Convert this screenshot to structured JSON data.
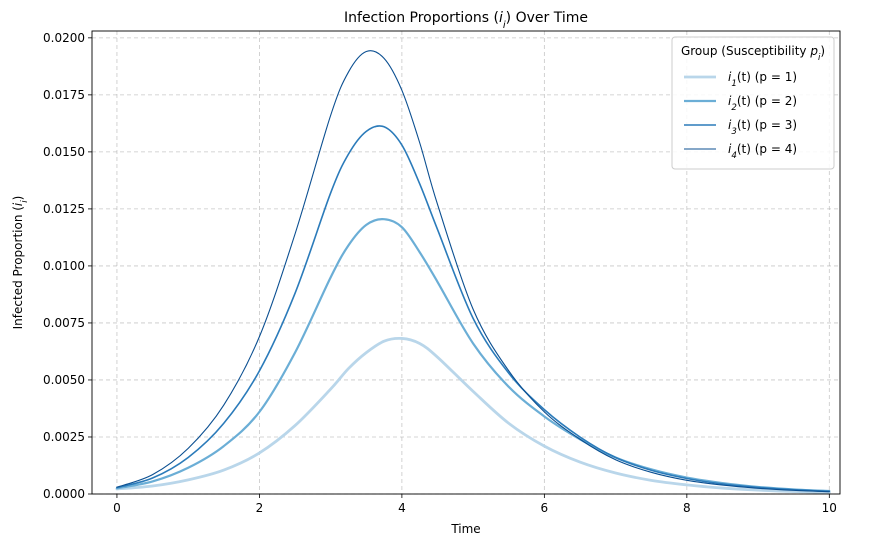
{
  "chart_data": {
    "type": "line",
    "title": "Infection Proportions (i_i) Over Time",
    "xlabel": "Time",
    "ylabel": "Infected Proportion (i_i)",
    "xlim": [
      -0.35,
      10.15
    ],
    "ylim": [
      0,
      0.0203
    ],
    "xticks": [
      0,
      2,
      4,
      6,
      8,
      10
    ],
    "xtick_labels": [
      "0",
      "2",
      "4",
      "6",
      "8",
      "10"
    ],
    "yticks": [
      0,
      0.0025,
      0.005,
      0.0075,
      0.01,
      0.0125,
      0.015,
      0.0175,
      0.02
    ],
    "ytick_labels": [
      "0.0000",
      "0.0025",
      "0.0050",
      "0.0075",
      "0.0100",
      "0.0125",
      "0.0150",
      "0.0175",
      "0.0200"
    ],
    "grid": true,
    "legend": {
      "title": "Group (Susceptibility p_i)",
      "placement": "top-right"
    },
    "x": [
      0,
      0.5,
      1,
      1.5,
      2,
      2.5,
      3,
      3.25,
      3.5,
      3.75,
      4,
      4.25,
      4.5,
      5,
      5.5,
      6,
      6.5,
      7,
      7.5,
      8,
      8.5,
      9,
      9.5,
      10
    ],
    "series": [
      {
        "name": "i_1(t) (p = 1)",
        "color": "#b9d6ea",
        "width": 2.8,
        "values": [
          0.00022,
          0.00035,
          0.00062,
          0.00105,
          0.0018,
          0.003,
          0.0046,
          0.0055,
          0.0062,
          0.0067,
          0.00682,
          0.0066,
          0.006,
          0.0045,
          0.0031,
          0.0021,
          0.0014,
          0.00092,
          0.0006,
          0.0004,
          0.00026,
          0.00017,
          0.00011,
          7e-05
        ]
      },
      {
        "name": "i_2(t) (p = 2)",
        "color": "#6baed6",
        "width": 2.2,
        "values": [
          0.00025,
          0.00055,
          0.00115,
          0.0021,
          0.0036,
          0.0062,
          0.0095,
          0.0109,
          0.0118,
          0.01205,
          0.0117,
          0.0106,
          0.0093,
          0.0066,
          0.0047,
          0.0034,
          0.0024,
          0.0016,
          0.00108,
          0.00072,
          0.00048,
          0.00031,
          0.0002,
          0.00013
        ]
      },
      {
        "name": "i_3(t) (p = 3)",
        "color": "#2b7bba",
        "width": 1.6,
        "values": [
          0.00028,
          0.0007,
          0.0016,
          0.0031,
          0.0054,
          0.0088,
          0.0132,
          0.0149,
          0.0159,
          0.0161,
          0.0153,
          0.0136,
          0.0116,
          0.0077,
          0.0053,
          0.0037,
          0.0025,
          0.0016,
          0.00104,
          0.00068,
          0.00044,
          0.00029,
          0.00019,
          0.00012
        ]
      },
      {
        "name": "i_4(t) (p = 4)",
        "color": "#0b4f91",
        "width": 1.1,
        "values": [
          0.0003,
          0.00085,
          0.002,
          0.0039,
          0.0069,
          0.0114,
          0.0166,
          0.0185,
          0.0194,
          0.0191,
          0.0177,
          0.0154,
          0.0127,
          0.0081,
          0.0054,
          0.0036,
          0.0024,
          0.0015,
          0.00095,
          0.0006,
          0.00039,
          0.00025,
          0.00016,
          0.0001
        ]
      }
    ]
  }
}
